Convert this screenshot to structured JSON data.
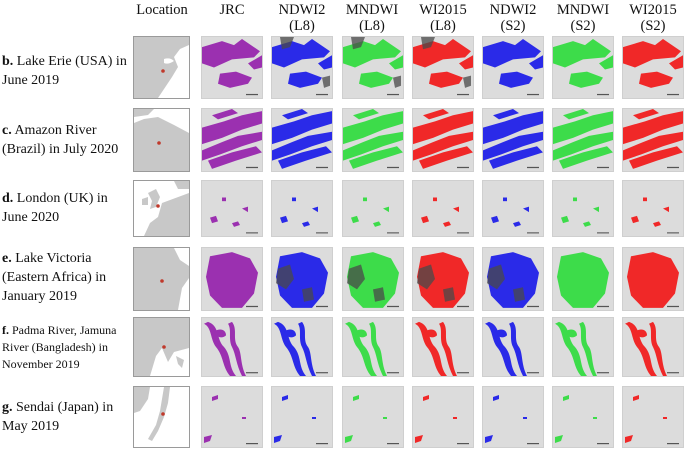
{
  "columns": [
    {
      "label": "Location"
    },
    {
      "label": "JRC"
    },
    {
      "label": "NDWI2\n(L8)"
    },
    {
      "label": "MNDWI\n(L8)"
    },
    {
      "label": "WI2015\n(L8)"
    },
    {
      "label": "NDWI2\n(S2)"
    },
    {
      "label": "MNDWI\n(S2)"
    },
    {
      "label": "WI2015\n(S2)"
    }
  ],
  "rows": [
    {
      "letter": "b.",
      "text": " Lake Erie (USA) in June 2019"
    },
    {
      "letter": "c.",
      "text": " Amazon River (Brazil) in July 2020"
    },
    {
      "letter": "d.",
      "text": " London (UK) in June 2020"
    },
    {
      "letter": "e.",
      "text": " Lake Victoria (Eastern Africa) in January 2019"
    },
    {
      "letter": "f.",
      "text": " Padma River, Jamuna River (Bangladesh) in November 2019"
    },
    {
      "letter": "g.",
      "text": " Sendai (Japan) in May 2019"
    }
  ],
  "colors": {
    "jrc": "#9b30b0",
    "ndwi": "#2a2ae8",
    "mndwi": "#3ddc4a",
    "wi2015": "#f02828",
    "background": "#dcdcdc",
    "land_map": "#c8c8c8",
    "location_marker": "#c0392b",
    "cloud_shadow": "#4a4a4a"
  }
}
